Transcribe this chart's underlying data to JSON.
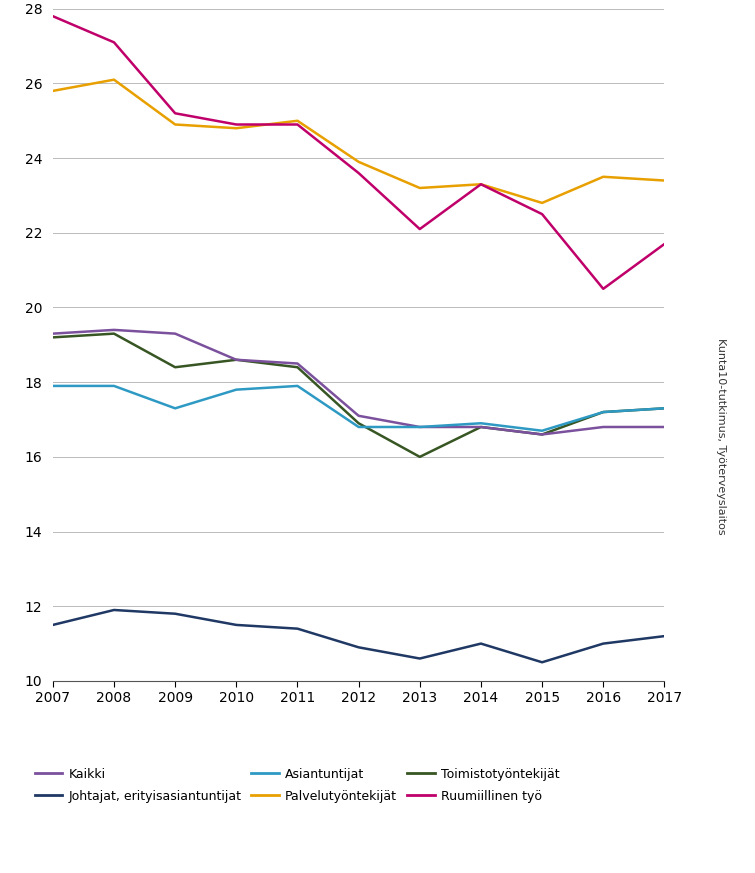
{
  "years": [
    2007,
    2008,
    2009,
    2010,
    2011,
    2012,
    2013,
    2014,
    2015,
    2016,
    2017
  ],
  "series": {
    "Kaikki": {
      "values": [
        19.3,
        19.4,
        19.3,
        18.6,
        18.5,
        17.1,
        16.8,
        16.8,
        16.6,
        16.8,
        16.8
      ],
      "color": "#7B519D",
      "linewidth": 1.8
    },
    "Johtajat, erityisasiantuntijat": {
      "values": [
        11.5,
        11.9,
        11.8,
        11.5,
        11.4,
        10.9,
        10.6,
        11.0,
        10.5,
        11.0,
        11.2
      ],
      "color": "#1F3864",
      "linewidth": 1.8
    },
    "Asiantuntijat": {
      "values": [
        17.9,
        17.9,
        17.3,
        17.8,
        17.9,
        16.8,
        16.8,
        16.9,
        16.7,
        17.2,
        17.3
      ],
      "color": "#2E9AC4",
      "linewidth": 1.8
    },
    "Palvelutyöntekijät": {
      "values": [
        25.8,
        26.1,
        24.9,
        24.8,
        25.0,
        23.9,
        23.2,
        23.3,
        22.8,
        23.5,
        23.4
      ],
      "color": "#E8A000",
      "linewidth": 1.8
    },
    "Toimistotyöntekijät": {
      "values": [
        19.2,
        19.3,
        18.4,
        18.6,
        18.4,
        16.9,
        16.0,
        16.8,
        16.6,
        17.2,
        17.3
      ],
      "color": "#375623",
      "linewidth": 1.8
    },
    "Ruumiillinen työ": {
      "values": [
        27.8,
        27.1,
        25.2,
        24.9,
        24.9,
        23.6,
        22.1,
        23.3,
        22.5,
        20.5,
        21.7
      ],
      "color": "#C0006A",
      "linewidth": 1.8
    }
  },
  "ylim": [
    10,
    28
  ],
  "yticks": [
    10,
    12,
    14,
    16,
    18,
    20,
    22,
    24,
    26,
    28
  ],
  "background_color": "#ffffff",
  "grid_color": "#bbbbbb",
  "right_label": "Kunta10-tutkimus, Työterveyslaitos",
  "legend_row1": [
    "Kaikki",
    "Johtajat, erityisasiantuntijat",
    "Asiantuntijat"
  ],
  "legend_row2": [
    "Palvelutyöntekijät",
    "Toimistotyöntekijät",
    "Ruumiillinen työ"
  ]
}
